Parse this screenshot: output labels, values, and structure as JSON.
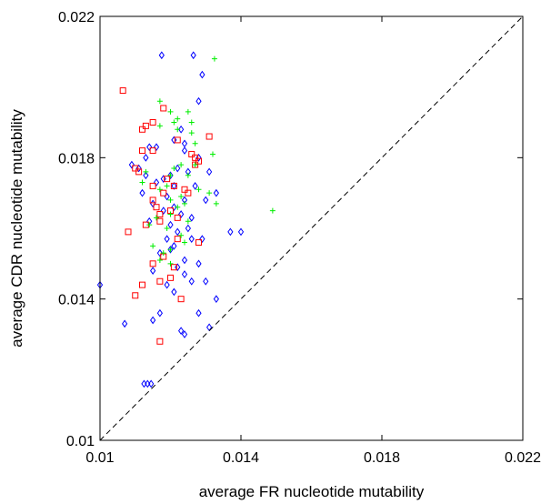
{
  "chart_data": {
    "type": "scatter",
    "xlabel": "average FR nucleotide mutability",
    "ylabel": "average CDR nucleotide mutability",
    "xlim": [
      0.01,
      0.022
    ],
    "ylim": [
      0.01,
      0.022
    ],
    "x_ticks": [
      0.01,
      0.014,
      0.018,
      0.022
    ],
    "x_tick_labels": [
      "0.01",
      "0.014",
      "0.018",
      "0.022"
    ],
    "y_ticks": [
      0.01,
      0.014,
      0.018,
      0.022
    ],
    "y_tick_labels": [
      "0.01",
      "0.014",
      "0.018",
      "0.022"
    ],
    "reference_line": {
      "x": [
        0.01,
        0.022
      ],
      "y": [
        0.01,
        0.022
      ],
      "style": "dashed",
      "color": "#000000"
    },
    "grid": false,
    "legend": "none",
    "series": [
      {
        "marker": "diamond",
        "color": "#0000ff",
        "points": [
          [
            0.01175,
            0.0209
          ],
          [
            0.01265,
            0.0209
          ],
          [
            0.0129,
            0.02035
          ],
          [
            0.0128,
            0.0196
          ],
          [
            0.0123,
            0.0188
          ],
          [
            0.0124,
            0.0184
          ],
          [
            0.0121,
            0.0185
          ],
          [
            0.0114,
            0.0183
          ],
          [
            0.0116,
            0.0183
          ],
          [
            0.0124,
            0.0182
          ],
          [
            0.0113,
            0.018
          ],
          [
            0.0128,
            0.018
          ],
          [
            0.0109,
            0.0178
          ],
          [
            0.0111,
            0.0177
          ],
          [
            0.0122,
            0.0177
          ],
          [
            0.012,
            0.0175
          ],
          [
            0.0125,
            0.0176
          ],
          [
            0.0131,
            0.0176
          ],
          [
            0.0113,
            0.0175
          ],
          [
            0.0118,
            0.0174
          ],
          [
            0.0116,
            0.0173
          ],
          [
            0.0121,
            0.0172
          ],
          [
            0.0127,
            0.0172
          ],
          [
            0.0133,
            0.017
          ],
          [
            0.0112,
            0.017
          ],
          [
            0.0119,
            0.0169
          ],
          [
            0.0124,
            0.0168
          ],
          [
            0.013,
            0.0168
          ],
          [
            0.0115,
            0.0167
          ],
          [
            0.0121,
            0.0166
          ],
          [
            0.0118,
            0.0165
          ],
          [
            0.0123,
            0.0164
          ],
          [
            0.0126,
            0.0163
          ],
          [
            0.0114,
            0.0162
          ],
          [
            0.012,
            0.0161
          ],
          [
            0.0125,
            0.016
          ],
          [
            0.0137,
            0.0159
          ],
          [
            0.014,
            0.0159
          ],
          [
            0.0122,
            0.0159
          ],
          [
            0.0119,
            0.0157
          ],
          [
            0.0126,
            0.0157
          ],
          [
            0.0129,
            0.0157
          ],
          [
            0.0121,
            0.0155
          ],
          [
            0.012,
            0.0154
          ],
          [
            0.0117,
            0.0153
          ],
          [
            0.0124,
            0.0151
          ],
          [
            0.0128,
            0.015
          ],
          [
            0.0122,
            0.0149
          ],
          [
            0.0115,
            0.0148
          ],
          [
            0.0124,
            0.0147
          ],
          [
            0.013,
            0.0145
          ],
          [
            0.0126,
            0.0145
          ],
          [
            0.0119,
            0.0144
          ],
          [
            0.01,
            0.0144
          ],
          [
            0.0121,
            0.0142
          ],
          [
            0.0133,
            0.014
          ],
          [
            0.0117,
            0.0136
          ],
          [
            0.0128,
            0.0136
          ],
          [
            0.0115,
            0.0134
          ],
          [
            0.0107,
            0.0133
          ],
          [
            0.0123,
            0.0131
          ],
          [
            0.0124,
            0.013
          ],
          [
            0.0131,
            0.0132
          ],
          [
            0.01125,
            0.0116
          ],
          [
            0.01135,
            0.0116
          ],
          [
            0.01145,
            0.0116
          ]
        ]
      },
      {
        "marker": "square",
        "color": "#ff0000",
        "points": [
          [
            0.01065,
            0.0199
          ],
          [
            0.0118,
            0.0194
          ],
          [
            0.0115,
            0.019
          ],
          [
            0.0113,
            0.0189
          ],
          [
            0.0112,
            0.0188
          ],
          [
            0.0131,
            0.0186
          ],
          [
            0.0122,
            0.0185
          ],
          [
            0.0112,
            0.0182
          ],
          [
            0.0115,
            0.0182
          ],
          [
            0.0126,
            0.0181
          ],
          [
            0.0127,
            0.018
          ],
          [
            0.0128,
            0.0179
          ],
          [
            0.0127,
            0.0178
          ],
          [
            0.011,
            0.0177
          ],
          [
            0.0111,
            0.0176
          ],
          [
            0.0119,
            0.0174
          ],
          [
            0.0115,
            0.0172
          ],
          [
            0.0121,
            0.0172
          ],
          [
            0.0124,
            0.0171
          ],
          [
            0.0118,
            0.017
          ],
          [
            0.0125,
            0.017
          ],
          [
            0.0115,
            0.0168
          ],
          [
            0.0116,
            0.0166
          ],
          [
            0.012,
            0.0165
          ],
          [
            0.0117,
            0.0164
          ],
          [
            0.0122,
            0.0163
          ],
          [
            0.0113,
            0.0161
          ],
          [
            0.0117,
            0.0162
          ],
          [
            0.0108,
            0.0159
          ],
          [
            0.0122,
            0.0157
          ],
          [
            0.0128,
            0.0156
          ],
          [
            0.0118,
            0.0152
          ],
          [
            0.0115,
            0.015
          ],
          [
            0.0121,
            0.0149
          ],
          [
            0.012,
            0.0146
          ],
          [
            0.0117,
            0.0145
          ],
          [
            0.0112,
            0.0144
          ],
          [
            0.011,
            0.0141
          ],
          [
            0.0123,
            0.014
          ],
          [
            0.0117,
            0.0128
          ]
        ]
      },
      {
        "marker": "plus",
        "color": "#00ee00",
        "points": [
          [
            0.01325,
            0.0208
          ],
          [
            0.0117,
            0.0196
          ],
          [
            0.012,
            0.0193
          ],
          [
            0.0125,
            0.0193
          ],
          [
            0.0122,
            0.0191
          ],
          [
            0.0121,
            0.019
          ],
          [
            0.0117,
            0.0189
          ],
          [
            0.0126,
            0.019
          ],
          [
            0.0122,
            0.0188
          ],
          [
            0.0126,
            0.0187
          ],
          [
            0.0127,
            0.0184
          ],
          [
            0.0132,
            0.0181
          ],
          [
            0.0123,
            0.0178
          ],
          [
            0.0127,
            0.0178
          ],
          [
            0.0121,
            0.0177
          ],
          [
            0.0113,
            0.0176
          ],
          [
            0.012,
            0.0175
          ],
          [
            0.0125,
            0.0175
          ],
          [
            0.0112,
            0.0173
          ],
          [
            0.0119,
            0.0172
          ],
          [
            0.0117,
            0.0171
          ],
          [
            0.0128,
            0.0171
          ],
          [
            0.0131,
            0.017
          ],
          [
            0.0123,
            0.0169
          ],
          [
            0.012,
            0.0168
          ],
          [
            0.0124,
            0.0167
          ],
          [
            0.0133,
            0.0167
          ],
          [
            0.0122,
            0.0166
          ],
          [
            0.0149,
            0.0165
          ],
          [
            0.012,
            0.0164
          ],
          [
            0.0116,
            0.0163
          ],
          [
            0.0125,
            0.0162
          ],
          [
            0.0114,
            0.0161
          ],
          [
            0.0119,
            0.016
          ],
          [
            0.0123,
            0.0158
          ],
          [
            0.0124,
            0.0156
          ],
          [
            0.0115,
            0.0155
          ],
          [
            0.012,
            0.0154
          ],
          [
            0.0118,
            0.0153
          ],
          [
            0.0117,
            0.0151
          ],
          [
            0.012,
            0.015
          ]
        ]
      }
    ]
  }
}
